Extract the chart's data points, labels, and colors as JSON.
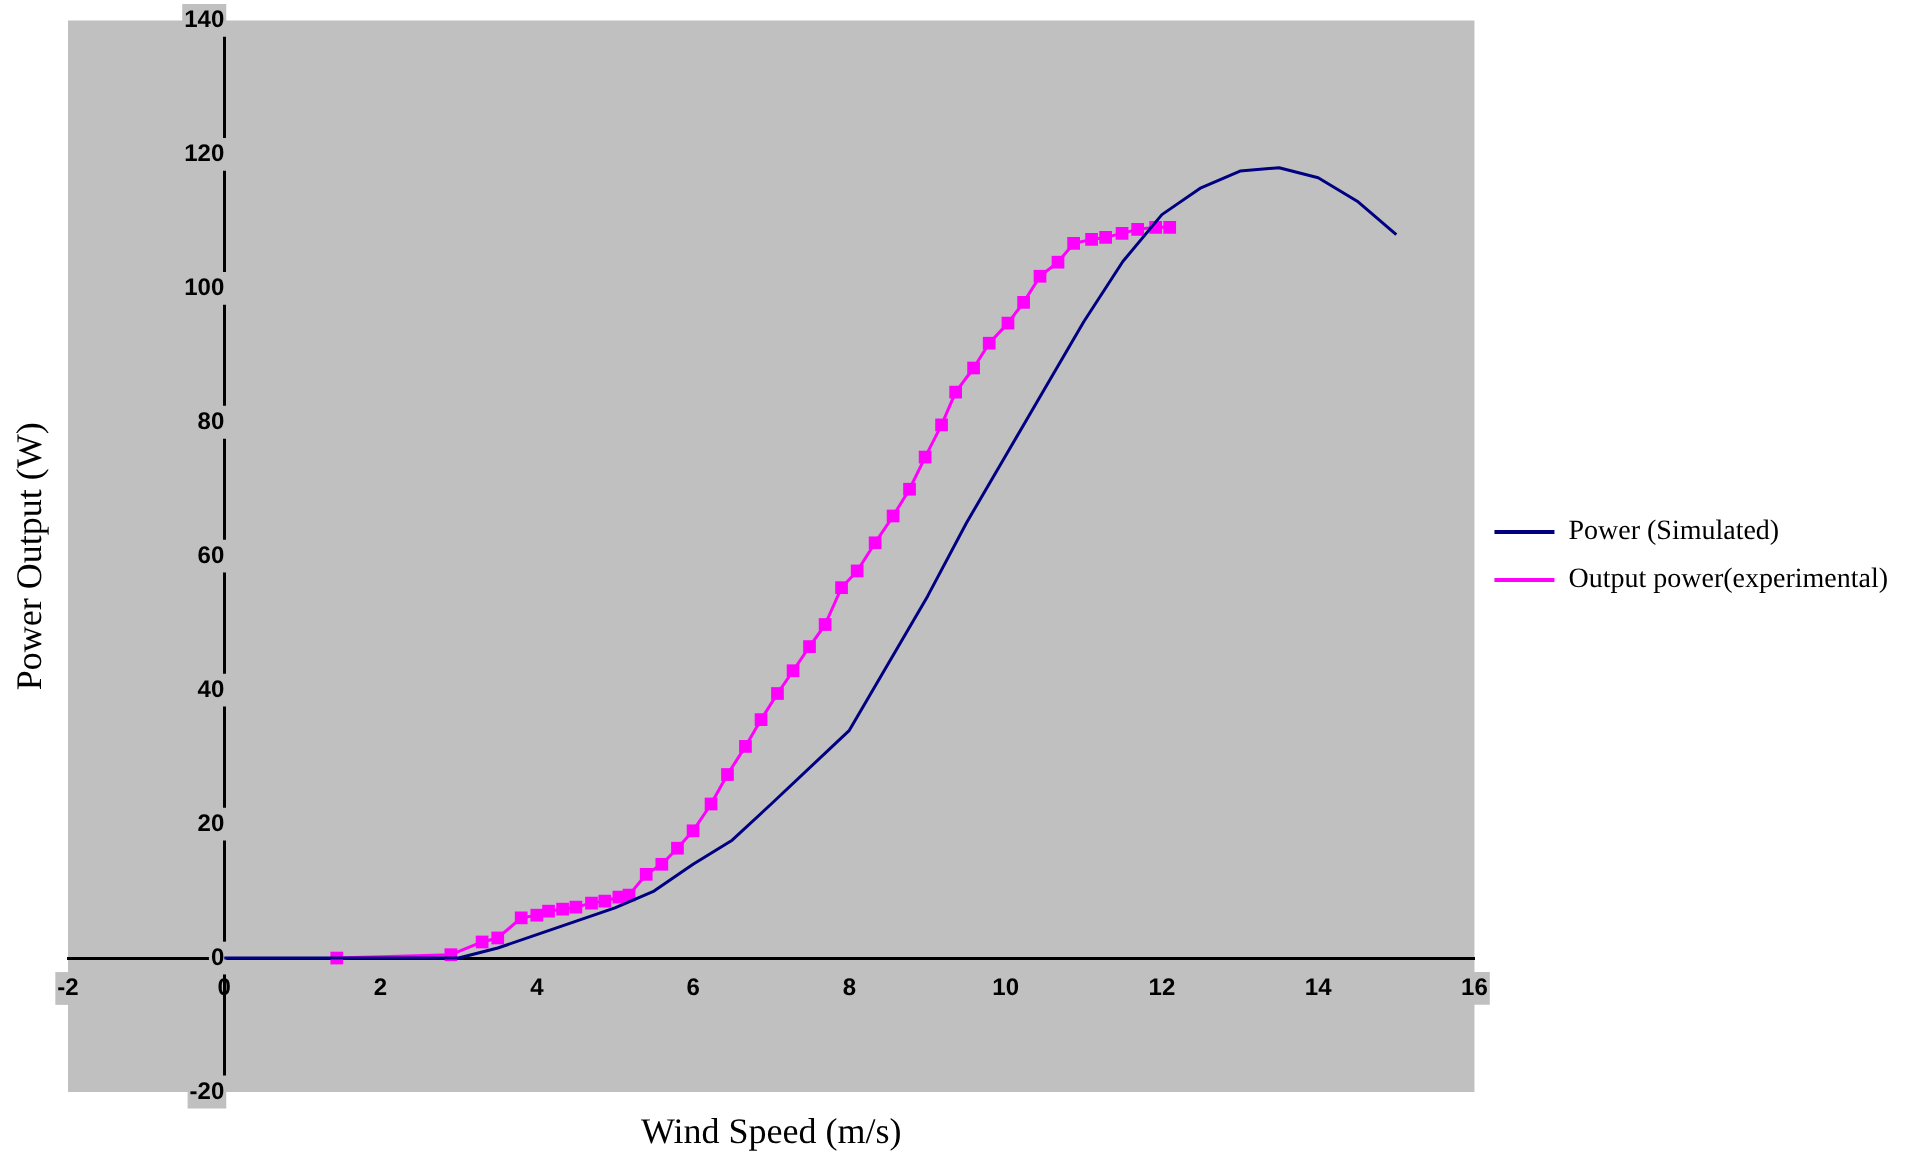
{
  "chart_data": {
    "type": "line",
    "xlabel": "Wind Speed (m/s)",
    "ylabel": "Power Output (W)",
    "xlim": [
      -2,
      16
    ],
    "xticks": [
      -2,
      0,
      2,
      4,
      6,
      8,
      10,
      12,
      14,
      16
    ],
    "ylim": [
      -20,
      140
    ],
    "yticks": [
      -20,
      0,
      20,
      40,
      60,
      80,
      100,
      120,
      140
    ],
    "grid": false,
    "legend": "right",
    "series": [
      {
        "name": "Power (Simulated)",
        "color": "#000080",
        "marker": "none",
        "x": [
          0,
          1,
          2,
          3,
          3.5,
          4,
          5,
          5.5,
          6,
          6.5,
          7,
          8,
          9,
          9.5,
          10,
          10.5,
          11,
          11.5,
          12,
          12.5,
          13,
          13.5,
          14,
          14.5,
          15
        ],
        "values": [
          0,
          0,
          0,
          0,
          1.5,
          3.5,
          7.5,
          10,
          14,
          17.6,
          23,
          34,
          54,
          65,
          75,
          85,
          95,
          104,
          111,
          115,
          117.5,
          118,
          116.5,
          113,
          108
        ]
      },
      {
        "name": "Output power(experimental)",
        "color": "#ff00ff",
        "marker": "square",
        "x": [
          1.44,
          2.9,
          3.3,
          3.5,
          3.8,
          4.0,
          4.15,
          4.33,
          4.5,
          4.7,
          4.87,
          5.05,
          5.18,
          5.4,
          5.6,
          5.8,
          6.0,
          6.23,
          6.44,
          6.67,
          6.87,
          7.08,
          7.28,
          7.49,
          7.69,
          7.9,
          8.1,
          8.33,
          8.56,
          8.77,
          8.97,
          9.18,
          9.36,
          9.59,
          9.79,
          10.03,
          10.23,
          10.44,
          10.67,
          10.87,
          11.1,
          11.28,
          11.49,
          11.69,
          11.92,
          12.1
        ],
        "values": [
          0,
          0.5,
          2.4,
          3,
          6,
          6.4,
          7,
          7.3,
          7.6,
          8.2,
          8.5,
          9.1,
          9.4,
          12.5,
          14,
          16.4,
          19,
          23,
          27.4,
          31.6,
          35.6,
          39.5,
          42.9,
          46.5,
          49.8,
          55.3,
          57.8,
          62,
          66,
          70,
          74.8,
          79.6,
          84.5,
          88.1,
          91.8,
          94.8,
          97.9,
          101.8,
          103.9,
          106.7,
          107.3,
          107.6,
          108.2,
          108.8,
          109.1,
          109.1
        ]
      }
    ]
  }
}
